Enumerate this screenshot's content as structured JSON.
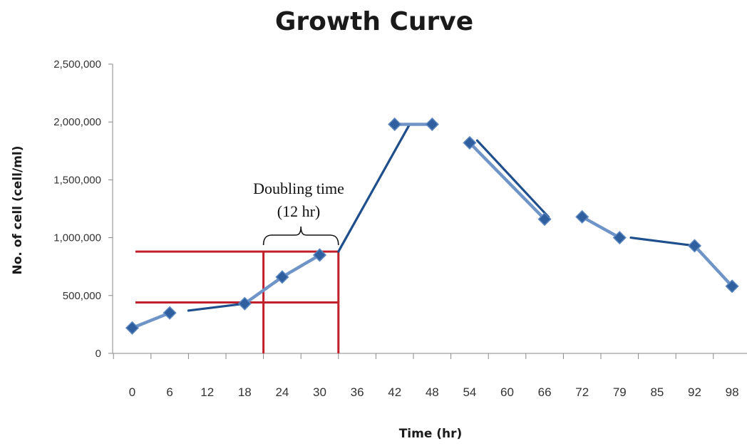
{
  "chart_data": {
    "type": "line",
    "title": "Growth Curve",
    "xlabel": "Time (hr)",
    "ylabel": "No. of cell (cell/ml)",
    "categories": [
      "0",
      "6",
      "12",
      "18",
      "24",
      "30",
      "36",
      "42",
      "48",
      "54",
      "60",
      "66",
      "72",
      "79",
      "85",
      "92",
      "98"
    ],
    "ylim": [
      0,
      2500000
    ],
    "yticks": [
      0,
      500000,
      1000000,
      1500000,
      2000000,
      2500000
    ],
    "ytick_labels": [
      "0",
      "500,000",
      "1,000,000",
      "1,500,000",
      "2,000,000",
      "2,500,000"
    ],
    "grid": false,
    "legend": "none",
    "series": [
      {
        "points": [
          {
            "x": 0,
            "y": 220000
          },
          {
            "x": 1,
            "y": 350000
          },
          {
            "x": 3,
            "y": 430000
          },
          {
            "x": 4,
            "y": 660000
          },
          {
            "x": 5,
            "y": 850000
          },
          {
            "x": 7,
            "y": 1980000
          },
          {
            "x": 8,
            "y": 1980000
          },
          {
            "x": 9,
            "y": 1820000
          },
          {
            "x": 11,
            "y": 1160000
          },
          {
            "x": 12,
            "y": 1180000
          },
          {
            "x": 13,
            "y": 1000000
          },
          {
            "x": 15,
            "y": 930000
          },
          {
            "x": 16,
            "y": 580000
          }
        ]
      }
    ],
    "trend_segments": [
      {
        "from": {
          "x": 1.5,
          "y": 370000
        },
        "to": {
          "x": 3,
          "y": 430000
        }
      },
      {
        "from": {
          "x": 5.5,
          "y": 880000
        },
        "to": {
          "x": 7.4,
          "y": 1980000
        }
      },
      {
        "from": {
          "x": 9.2,
          "y": 1840000
        },
        "to": {
          "x": 11.1,
          "y": 1180000
        }
      },
      {
        "from": {
          "x": 13.3,
          "y": 1000000
        },
        "to": {
          "x": 15,
          "y": 930000
        }
      }
    ],
    "annotation": {
      "lines": [
        "Doubling time",
        "(12 hr)"
      ],
      "color": "#c0202a",
      "y_levels": [
        440000,
        880000
      ],
      "x_start": 3.5,
      "x_end": 5.5
    },
    "colors": {
      "line": "#1f4e8c",
      "marker_fill": "#2f5f9e",
      "marker_stroke": "#5a86c0",
      "link": "#6f95c8",
      "annotation": "#c0202a"
    }
  }
}
